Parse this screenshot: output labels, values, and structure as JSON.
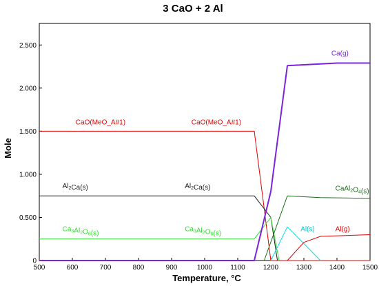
{
  "chart_data": {
    "type": "line",
    "title": "3 CaO + 2 Al",
    "xlabel": "Temperature, °C",
    "ylabel": "Mole",
    "xlim": [
      500,
      1500
    ],
    "ylim": [
      0,
      2.75
    ],
    "xticks": [
      500,
      600,
      700,
      800,
      900,
      1000,
      1100,
      1200,
      1300,
      1400,
      1500
    ],
    "yticks": [
      {
        "value": 0,
        "label": "0"
      },
      {
        "value": 0.5,
        "label": "0.500"
      },
      {
        "value": 1.0,
        "label": "1.000"
      },
      {
        "value": 1.5,
        "label": "1.500"
      },
      {
        "value": 2.0,
        "label": "2.000"
      },
      {
        "value": 2.5,
        "label": "2.500"
      }
    ],
    "grid": false,
    "series": [
      {
        "name": "CaO(MeO_A#1)",
        "color": "#e00000",
        "width": 1,
        "points": [
          [
            500,
            1.5
          ],
          [
            1150,
            1.5
          ],
          [
            1200,
            0
          ],
          [
            1500,
            0
          ]
        ]
      },
      {
        "name": "Al2Ca(s)",
        "color": "#202020",
        "width": 1,
        "points": [
          [
            500,
            0.75
          ],
          [
            1150,
            0.75
          ],
          [
            1200,
            0.5
          ],
          [
            1220,
            0
          ]
        ]
      },
      {
        "name": "Ca3Al2O6(s)",
        "color": "#33dd33",
        "width": 1,
        "points": [
          [
            500,
            0.25
          ],
          [
            1150,
            0.25
          ],
          [
            1200,
            0.5
          ],
          [
            1225,
            0
          ]
        ]
      },
      {
        "name": "CaAl2O4(s)",
        "color": "#1a6e1a",
        "width": 1,
        "points": [
          [
            1180,
            0
          ],
          [
            1250,
            0.75
          ],
          [
            1350,
            0.73
          ],
          [
            1500,
            0.72
          ]
        ]
      },
      {
        "name": "Ca(g)",
        "color": "#7a22dd",
        "width": 2,
        "points": [
          [
            500,
            0
          ],
          [
            1150,
            0
          ],
          [
            1200,
            0.8
          ],
          [
            1250,
            2.26
          ],
          [
            1300,
            2.27
          ],
          [
            1400,
            2.29
          ],
          [
            1500,
            2.29
          ]
        ]
      },
      {
        "name": "Al(s)",
        "color": "#00e0e0",
        "width": 1,
        "points": [
          [
            1200,
            0
          ],
          [
            1250,
            0.39
          ],
          [
            1350,
            0
          ]
        ]
      },
      {
        "name": "Al(g)",
        "color": "#e00000",
        "width": 1,
        "points": [
          [
            1250,
            0
          ],
          [
            1300,
            0.21
          ],
          [
            1350,
            0.28
          ],
          [
            1500,
            0.3
          ]
        ]
      }
    ],
    "annotations": [
      {
        "main": "CaO(MeO_A#1)",
        "x": 610,
        "y": 1.58,
        "color": "#e00000"
      },
      {
        "main": "CaO(MeO_A#1)",
        "x": 960,
        "y": 1.58,
        "color": "#e00000"
      },
      {
        "main": "Al",
        "sub": "2",
        "main2": "Ca(s)",
        "x": 570,
        "y": 0.84,
        "color": "#202020"
      },
      {
        "main": "Al",
        "sub": "2",
        "main2": "Ca(s)",
        "x": 940,
        "y": 0.84,
        "color": "#202020"
      },
      {
        "main": "Ca",
        "sub": "3",
        "main2": "Al",
        "sub2": "2",
        "main3": "O",
        "sub3": "6",
        "main4": "(s)",
        "x": 570,
        "y": 0.34,
        "color": "#33dd33"
      },
      {
        "main": "Ca",
        "sub": "3",
        "main2": "Al",
        "sub2": "2",
        "main3": "O",
        "sub3": "6",
        "main4": "(s)",
        "x": 940,
        "y": 0.34,
        "color": "#33dd33"
      },
      {
        "main": "CaAl",
        "sub": "2",
        "main2": "O",
        "sub2": "4",
        "main3": "(s)",
        "x": 1395,
        "y": 0.81,
        "color": "#1a6e1a"
      },
      {
        "main": "Ca(g)",
        "x": 1383,
        "y": 2.38,
        "color": "#7a22dd"
      },
      {
        "main": "Al(s)",
        "x": 1290,
        "y": 0.34,
        "color": "#00cccc"
      },
      {
        "main": "Al(g)",
        "x": 1395,
        "y": 0.34,
        "color": "#e00000"
      }
    ]
  }
}
